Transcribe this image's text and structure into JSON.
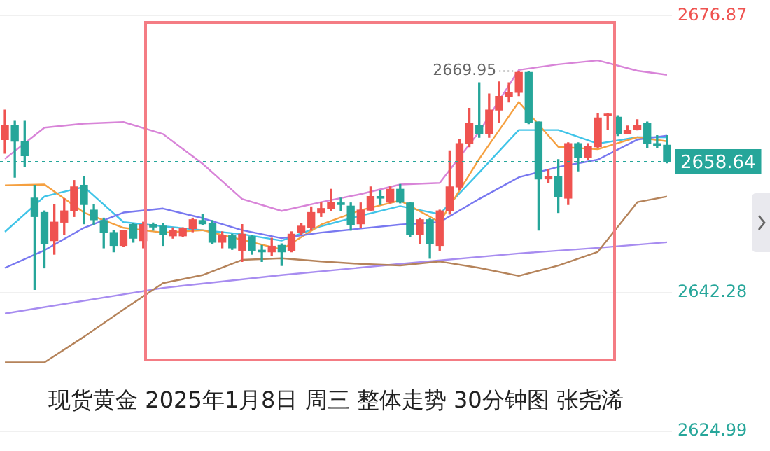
{
  "chart_data": {
    "type": "candlestick",
    "title": "现货黄金 2025年1月8日 周三 整体走势 30分钟图 张尧浠",
    "categories": [
      null,
      null,
      null,
      null,
      null,
      null,
      null,
      null,
      null,
      null,
      null,
      null,
      null,
      null,
      null,
      null,
      null,
      null,
      null,
      null,
      null,
      null,
      null,
      null,
      null,
      null,
      null,
      null,
      null,
      null,
      null,
      null,
      null,
      null,
      null,
      null,
      null,
      null,
      null,
      null,
      null,
      null,
      null,
      null,
      null,
      null,
      null,
      null,
      null,
      null,
      null,
      null,
      null,
      null,
      null,
      null,
      null,
      null,
      null,
      null,
      null,
      null,
      null,
      null,
      null,
      null,
      null,
      null
    ],
    "ohlc": [
      [
        2661.4,
        2665.1,
        2659.7,
        2663.2
      ],
      [
        2663.2,
        2663.7,
        2656.7,
        2661.2
      ],
      [
        2661.2,
        2663.7,
        2658.0,
        2659.4
      ],
      [
        2654.1,
        2655.7,
        2642.7,
        2651.8
      ],
      [
        2652.3,
        2652.5,
        2645.4,
        2648.4
      ],
      [
        2648.8,
        2653.3,
        2647.1,
        2651.1
      ],
      [
        2651.1,
        2654.0,
        2649.6,
        2652.5
      ],
      [
        2652.5,
        2656.3,
        2651.8,
        2655.5
      ],
      [
        2655.7,
        2656.8,
        2650.9,
        2653.3
      ],
      [
        2652.6,
        2653.3,
        2650.8,
        2651.4
      ],
      [
        2651.3,
        2651.6,
        2647.9,
        2649.8
      ],
      [
        2649.8,
        2650.1,
        2647.4,
        2648.2
      ],
      [
        2648.2,
        2650.1,
        2648.1,
        2650.1
      ],
      [
        2650.8,
        2650.9,
        2648.6,
        2649.1
      ],
      [
        2648.8,
        2651.1,
        2647.9,
        2650.8
      ],
      [
        2650.8,
        2651.0,
        2650.1,
        2650.5
      ],
      [
        2650.6,
        2650.9,
        2648.2,
        2649.6
      ],
      [
        2649.4,
        2650.4,
        2649.1,
        2650.1
      ],
      [
        2649.4,
        2650.4,
        2649.3,
        2650.3
      ],
      [
        2650.3,
        2651.6,
        2649.9,
        2651.4
      ],
      [
        2651.3,
        2652.1,
        2650.8,
        2650.9
      ],
      [
        2650.9,
        2651.3,
        2648.4,
        2648.6
      ],
      [
        2648.6,
        2649.9,
        2647.9,
        2649.4
      ],
      [
        2649.4,
        2649.6,
        2647.7,
        2647.9
      ],
      [
        2647.6,
        2650.8,
        2646.2,
        2649.6
      ],
      [
        2649.3,
        2649.4,
        2647.1,
        2647.6
      ],
      [
        2647.6,
        2648.2,
        2646.2,
        2647.4
      ],
      [
        2647.4,
        2649.1,
        2646.9,
        2648.1
      ],
      [
        2648.2,
        2648.4,
        2645.7,
        2647.4
      ],
      [
        2647.6,
        2649.9,
        2647.4,
        2649.6
      ],
      [
        2649.8,
        2650.9,
        2649.6,
        2650.6
      ],
      [
        2650.4,
        2653.0,
        2650.1,
        2652.3
      ],
      [
        2652.3,
        2653.5,
        2651.8,
        2652.8
      ],
      [
        2652.8,
        2655.2,
        2652.5,
        2653.6
      ],
      [
        2653.5,
        2654.1,
        2652.5,
        2653.3
      ],
      [
        2653.1,
        2653.5,
        2650.1,
        2650.8
      ],
      [
        2650.9,
        2653.5,
        2650.4,
        2652.6
      ],
      [
        2652.6,
        2655.5,
        2652.5,
        2654.3
      ],
      [
        2654.3,
        2655.0,
        2653.3,
        2654.1
      ],
      [
        2653.6,
        2655.5,
        2653.5,
        2655.2
      ],
      [
        2655.2,
        2655.8,
        2653.5,
        2653.6
      ],
      [
        2653.5,
        2653.6,
        2649.3,
        2649.6
      ],
      [
        2649.6,
        2651.6,
        2648.4,
        2651.4
      ],
      [
        2651.4,
        2651.6,
        2646.6,
        2648.4
      ],
      [
        2648.2,
        2652.6,
        2647.6,
        2652.5
      ],
      [
        2652.5,
        2660.0,
        2652.1,
        2655.5
      ],
      [
        2655.5,
        2661.4,
        2655.2,
        2660.9
      ],
      [
        2660.9,
        2665.3,
        2660.5,
        2663.4
      ],
      [
        2663.2,
        2668.5,
        2661.7,
        2662.1
      ],
      [
        2662.1,
        2667.1,
        2661.7,
        2665.1
      ],
      [
        2665.1,
        2668.6,
        2663.6,
        2666.8
      ],
      [
        2666.8,
        2668.5,
        2666.1,
        2667.3
      ],
      [
        2667.3,
        2669.95,
        2666.9,
        2669.8
      ],
      [
        2669.8,
        2669.9,
        2663.4,
        2663.6
      ],
      [
        2663.6,
        2663.6,
        2650.1,
        2656.5
      ],
      [
        2656.5,
        2657.7,
        2656.0,
        2656.8
      ],
      [
        2656.8,
        2658.9,
        2652.3,
        2654.3
      ],
      [
        2654.1,
        2661.0,
        2653.3,
        2660.9
      ],
      [
        2660.9,
        2661.0,
        2657.5,
        2659.2
      ],
      [
        2659.2,
        2660.9,
        2658.9,
        2660.5
      ],
      [
        2660.5,
        2664.7,
        2660.4,
        2664.1
      ],
      [
        2664.4,
        2664.7,
        2662.7,
        2664.6
      ],
      [
        2664.2,
        2664.4,
        2661.9,
        2662.2
      ],
      [
        2662.2,
        2663.1,
        2662.1,
        2662.6
      ],
      [
        2662.7,
        2663.9,
        2662.6,
        2663.2
      ],
      [
        2663.4,
        2663.6,
        2660.4,
        2660.9
      ],
      [
        2660.9,
        2661.9,
        2660.4,
        2660.7
      ],
      [
        2660.7,
        2661.9,
        2658.5,
        2658.64
      ]
    ],
    "series": [
      {
        "type": "line",
        "color": "#d884d8",
        "values": [
          2659.0,
          null,
          null,
          null,
          2662.9,
          null,
          null,
          null,
          2663.4,
          null,
          null,
          null,
          2663.6,
          null,
          null,
          null,
          2662.1,
          null,
          null,
          null,
          2658.4,
          null,
          null,
          null,
          2654.0,
          null,
          null,
          null,
          2652.5,
          null,
          null,
          null,
          2653.6,
          null,
          null,
          null,
          2654.6,
          null,
          null,
          null,
          2655.8,
          null,
          null,
          null,
          2656.0,
          null,
          null,
          null,
          2662.4,
          null,
          null,
          null,
          2670.1,
          null,
          null,
          null,
          2670.8,
          null,
          null,
          null,
          2671.3,
          null,
          null,
          null,
          2670.0,
          null,
          null,
          2669.5
        ]
      },
      {
        "type": "line",
        "color": "#7878f0",
        "values": [
          2645.4,
          null,
          null,
          null,
          2647.6,
          null,
          null,
          null,
          2650.4,
          null,
          null,
          null,
          2652.3,
          null,
          null,
          null,
          2652.8,
          null,
          null,
          null,
          2651.6,
          null,
          null,
          null,
          2650.1,
          null,
          null,
          null,
          2649.1,
          null,
          null,
          null,
          2649.8,
          null,
          null,
          null,
          2650.3,
          null,
          null,
          null,
          2650.8,
          null,
          null,
          null,
          2651.1,
          null,
          null,
          null,
          2654.0,
          null,
          null,
          null,
          2656.7,
          null,
          null,
          null,
          2658.0,
          null,
          null,
          null,
          2658.9,
          null,
          null,
          null,
          2661.4,
          null,
          null,
          2661.9
        ]
      },
      {
        "type": "line",
        "color": "#b5835a",
        "values": [
          2633.6,
          null,
          null,
          null,
          2633.6,
          null,
          null,
          null,
          2636.8,
          null,
          null,
          null,
          2640.2,
          null,
          null,
          null,
          2643.5,
          null,
          null,
          null,
          2644.5,
          null,
          null,
          null,
          2646.4,
          null,
          null,
          null,
          2646.6,
          null,
          null,
          null,
          2646.2,
          null,
          null,
          null,
          2645.9,
          null,
          null,
          null,
          2645.7,
          null,
          null,
          null,
          2646.2,
          null,
          null,
          null,
          2645.4,
          null,
          null,
          null,
          2644.4,
          null,
          null,
          null,
          2645.7,
          null,
          null,
          null,
          2647.4,
          null,
          null,
          null,
          2653.6,
          null,
          null,
          2654.3
        ]
      },
      {
        "type": "line",
        "color": "#f5a040",
        "values": [
          2655.7,
          null,
          null,
          null,
          2655.8,
          null,
          null,
          null,
          2652.3,
          null,
          null,
          null,
          2650.4,
          null,
          null,
          null,
          2649.8,
          null,
          null,
          null,
          2650.1,
          null,
          null,
          null,
          2648.9,
          null,
          null,
          null,
          2647.7,
          null,
          null,
          null,
          2650.8,
          null,
          null,
          null,
          2652.6,
          null,
          null,
          null,
          2653.8,
          null,
          null,
          null,
          2651.1,
          null,
          null,
          null,
          2659.0,
          null,
          null,
          null,
          2666.1,
          null,
          null,
          null,
          2660.5,
          null,
          null,
          null,
          2660.2,
          null,
          null,
          null,
          2661.7,
          null,
          null,
          2661.2
        ]
      },
      {
        "type": "line",
        "color": "#40c4e8",
        "values": [
          2649.9,
          null,
          null,
          null,
          2654.3,
          null,
          null,
          null,
          2655.5,
          null,
          null,
          null,
          2651.1,
          null,
          null,
          null,
          2650.6,
          null,
          null,
          null,
          2650.1,
          null,
          null,
          null,
          2649.6,
          null,
          null,
          null,
          2648.8,
          null,
          null,
          null,
          2650.6,
          null,
          null,
          null,
          2651.9,
          null,
          null,
          null,
          2653.1,
          null,
          null,
          null,
          2652.1,
          null,
          null,
          null,
          2657.3,
          null,
          null,
          null,
          2662.6,
          null,
          null,
          null,
          2662.6,
          null,
          null,
          null,
          2660.9,
          null,
          null,
          null,
          2661.7,
          null,
          null,
          2661.7
        ]
      },
      {
        "type": "line",
        "color": "#a78cf0",
        "values": [
          2639.7,
          null,
          null,
          null,
          null,
          null,
          null,
          null,
          null,
          null,
          null,
          null,
          null,
          null,
          null,
          null,
          2642.9,
          null,
          null,
          null,
          null,
          null,
          null,
          null,
          null,
          null,
          null,
          null,
          2644.5,
          null,
          null,
          null,
          null,
          null,
          null,
          null,
          null,
          null,
          null,
          null,
          2645.9,
          null,
          null,
          null,
          null,
          null,
          null,
          null,
          null,
          null,
          null,
          null,
          2647.2,
          null,
          null,
          null,
          null,
          null,
          null,
          null,
          2647.9,
          null,
          null,
          null,
          null,
          null,
          null,
          2648.6
        ]
      }
    ],
    "ylim": [
      2624.99,
      2676.87
    ],
    "yticks": [
      2624.99,
      2642.28,
      2676.87
    ],
    "grid": "y",
    "legend": false,
    "marker": "none",
    "ref_lines": [
      {
        "axis": "y",
        "value": 2658.64,
        "label": "2658.64",
        "color": "#26a69a",
        "line_style": "dotted"
      }
    ],
    "annotations": [
      "2669.95"
    ]
  }
}
